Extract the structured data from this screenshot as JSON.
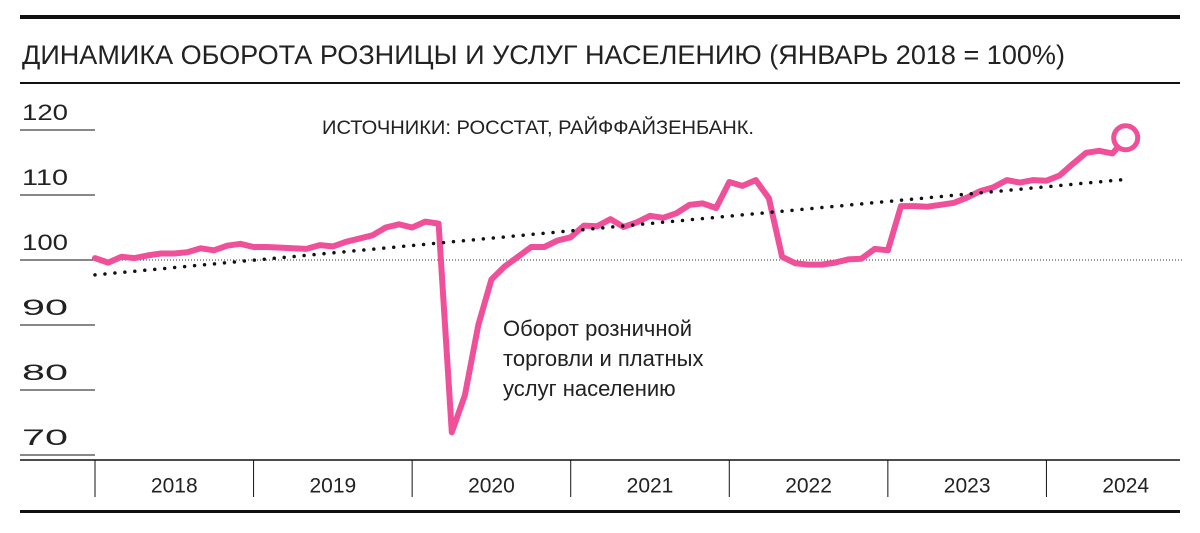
{
  "chart_data": {
    "type": "line",
    "title": "ДИНАМИКА ОБОРОТА РОЗНИЦЫ И УСЛУГ НАСЕЛЕНИЮ (ЯНВАРЬ 2018 = 100%)",
    "source": "ИСТОЧНИКИ: РОССТАТ, РАЙФФАЙЗЕНБАНК.",
    "annotation": [
      "Оборот розничной",
      "торговли и платных",
      "услуг населению"
    ],
    "x": [
      2018,
      2018.083,
      2018.167,
      2018.25,
      2018.333,
      2018.417,
      2018.5,
      2018.583,
      2018.667,
      2018.75,
      2018.833,
      2018.917,
      2019,
      2019.083,
      2019.167,
      2019.25,
      2019.333,
      2019.417,
      2019.5,
      2019.583,
      2019.667,
      2019.75,
      2019.833,
      2019.917,
      2020,
      2020.083,
      2020.167,
      2020.25,
      2020.333,
      2020.417,
      2020.5,
      2020.583,
      2020.667,
      2020.75,
      2020.833,
      2020.917,
      2021,
      2021.083,
      2021.167,
      2021.25,
      2021.333,
      2021.417,
      2021.5,
      2021.583,
      2021.667,
      2021.75,
      2021.833,
      2021.917,
      2022,
      2022.083,
      2022.167,
      2022.25,
      2022.333,
      2022.417,
      2022.5,
      2022.583,
      2022.667,
      2022.75,
      2022.833,
      2022.917,
      2023,
      2023.083,
      2023.167,
      2023.25,
      2023.333,
      2023.417,
      2023.5,
      2023.583,
      2023.667,
      2023.75,
      2023.833,
      2023.917,
      2024,
      2024.083,
      2024.167,
      2024.25,
      2024.333,
      2024.417,
      2024.5
    ],
    "series": [
      {
        "color": "#f0509a",
        "values": [
          100.3,
          99.6,
          100.5,
          100.3,
          100.7,
          101,
          101,
          101.2,
          101.8,
          101.5,
          102.2,
          102.5,
          102,
          102,
          101.9,
          101.8,
          101.7,
          102.3,
          102.1,
          102.8,
          103.3,
          103.8,
          105,
          105.5,
          105,
          105.9,
          105.6,
          73.5,
          79.2,
          90,
          97,
          99,
          100.5,
          102,
          102,
          103,
          103.5,
          105.3,
          105.2,
          106.3,
          105.1,
          105.8,
          106.8,
          106.5,
          107.2,
          108.5,
          108.7,
          108,
          112,
          111.4,
          112.3,
          109.5,
          100.5,
          99.5,
          99.3,
          99.3,
          99.6,
          100.1,
          100.2,
          101.7,
          101.5,
          108.3,
          108.3,
          108.2,
          108.5,
          108.8,
          109.6,
          110.6,
          111.2,
          112.3,
          111.9,
          112.3,
          112.2,
          113,
          114.8,
          116.5,
          116.8,
          116.4,
          118.8
        ]
      },
      {
        "color": "#111111",
        "style": "dotted",
        "x": [
          2018,
          2024.5
        ],
        "values": [
          97.7,
          112.4
        ]
      }
    ],
    "reference_line": 100,
    "xlim": [
      2018,
      2025
    ],
    "xseparators": [
      2018,
      2019,
      2020,
      2021,
      2022,
      2023,
      2024,
      2025
    ],
    "xticks": [
      {
        "value": 2018.5,
        "label": "2018"
      },
      {
        "value": 2019.5,
        "label": "2019"
      },
      {
        "value": 2020.5,
        "label": "2020"
      },
      {
        "value": 2021.5,
        "label": "2021"
      },
      {
        "value": 2022.5,
        "label": "2022"
      },
      {
        "value": 2023.5,
        "label": "2023"
      },
      {
        "value": 2024.5,
        "label": "2024"
      }
    ],
    "ylim": [
      70,
      120
    ],
    "yticks": [
      70,
      80,
      90,
      100,
      110,
      120
    ]
  }
}
